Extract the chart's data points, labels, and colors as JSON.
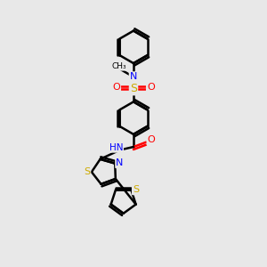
{
  "bg_color": "#e8e8e8",
  "atom_colors": {
    "C": "#000000",
    "N": "#0000ff",
    "O": "#ff0000",
    "S": "#ccaa00",
    "H": "#888888"
  },
  "bond_color": "#000000",
  "bond_width": 1.8,
  "fig_size": [
    3.0,
    3.0
  ],
  "dpi": 100
}
